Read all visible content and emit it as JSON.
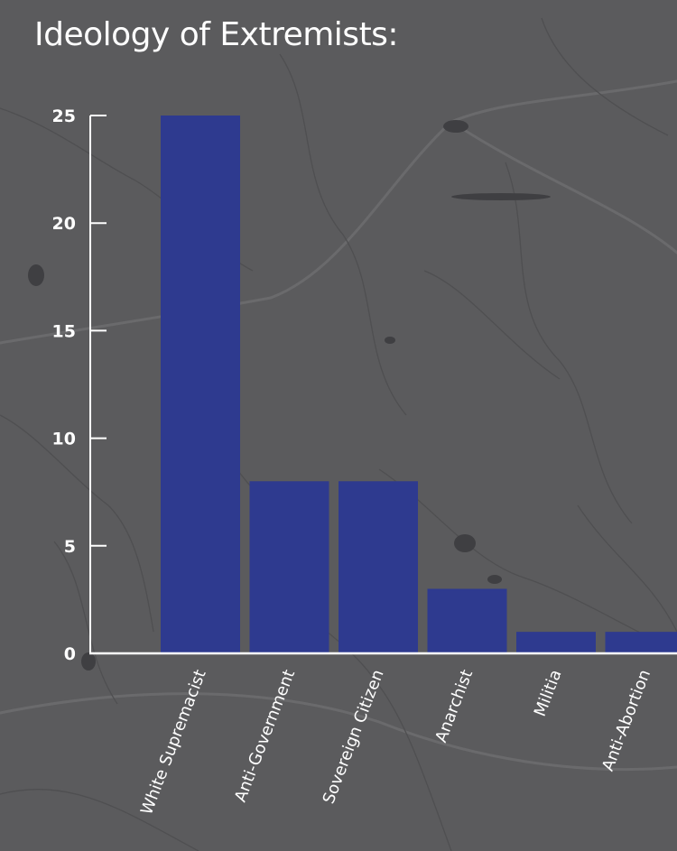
{
  "chart_data": {
    "type": "bar",
    "title": "Ideology of Extremists:",
    "xlabel": "",
    "ylabel": "",
    "categories": [
      "White Supremacist",
      "Anti-Government",
      "Sovereign Citizen",
      "Anarchist",
      "Militia",
      "Anti-Abortion"
    ],
    "values": [
      25,
      8,
      8,
      3,
      1,
      1
    ],
    "ylim": [
      0,
      25
    ],
    "yticks": [
      "0",
      "5",
      "10",
      "15",
      "20",
      "25"
    ],
    "grid": false,
    "legend": "none",
    "colors": {
      "bar": "#2e3a8f",
      "background": "#5b5b5d",
      "axis": "#ffffff",
      "text": "#ffffff"
    }
  }
}
